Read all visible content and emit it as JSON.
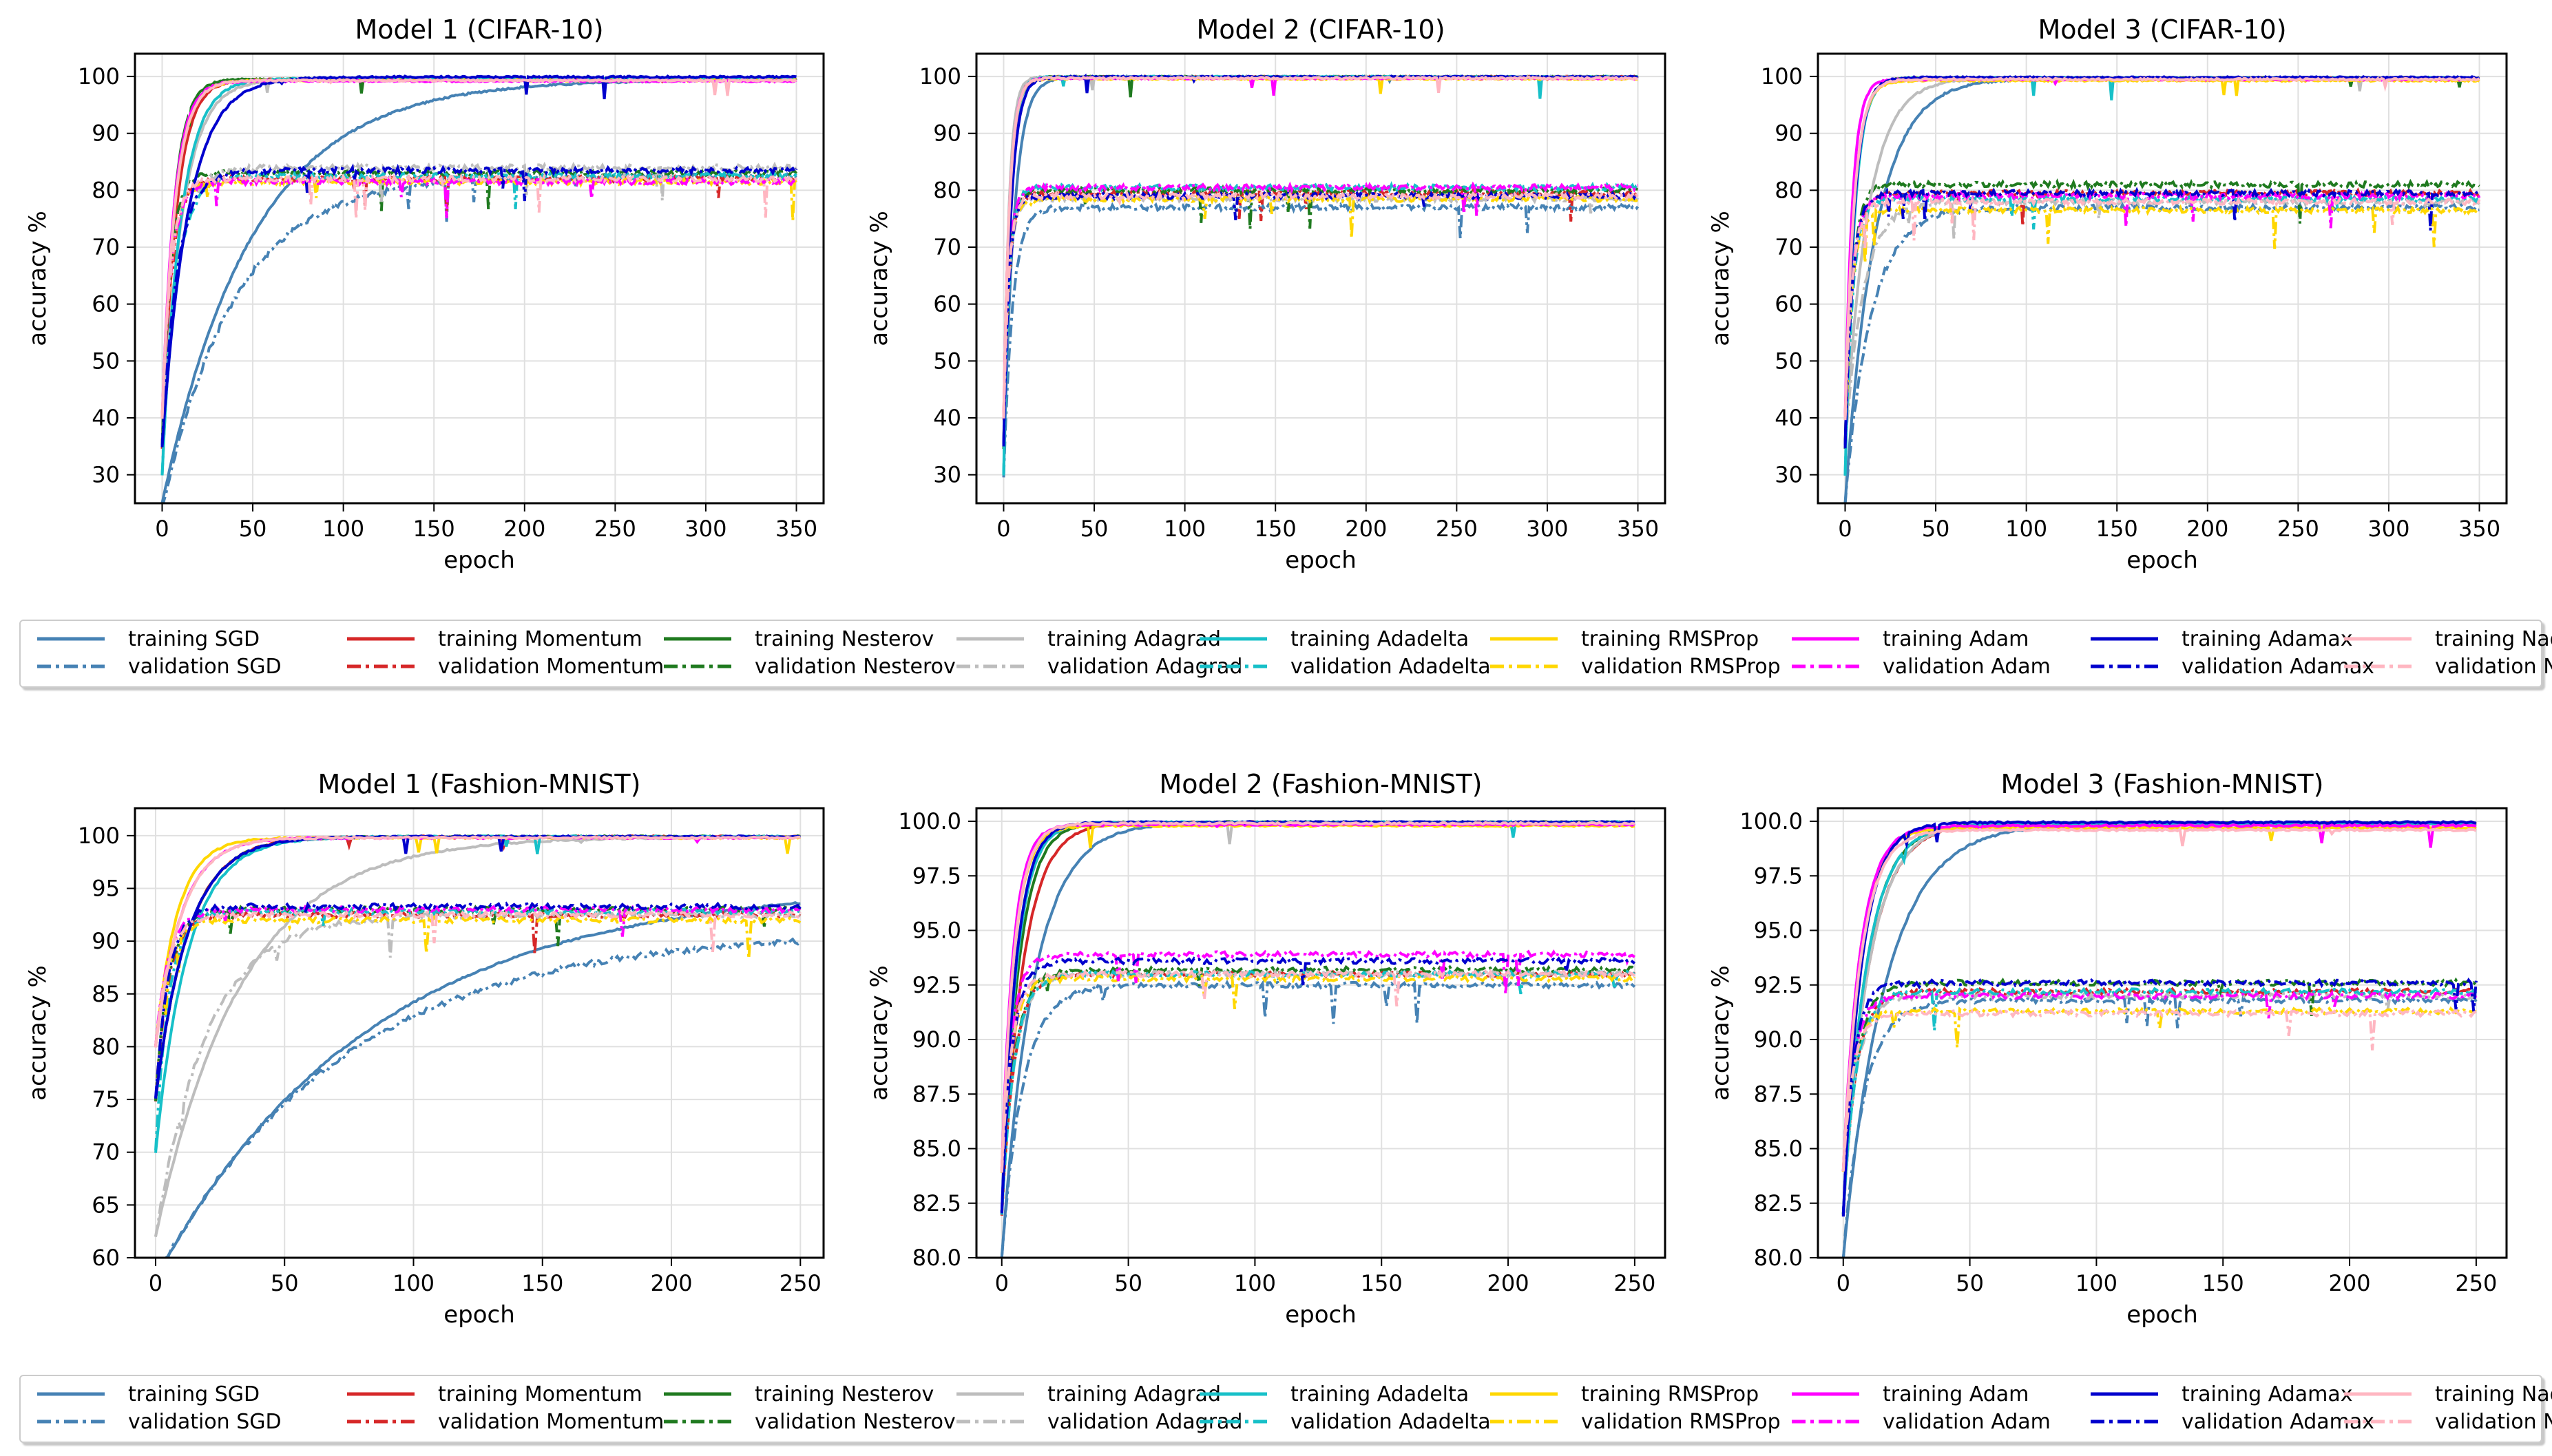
{
  "colors": {
    "SGD": "#4682b4",
    "Momentum": "#d62728",
    "Nesterov": "#1f7a1f",
    "Adagrad": "#bdbdbd",
    "Adadelta": "#17c0c8",
    "RMSProp": "#ffd700",
    "Adam": "#ff00ff",
    "Adamax": "#0000cd",
    "Nadam": "#ffb6c1"
  },
  "legend": {
    "optimizers": [
      "SGD",
      "Momentum",
      "Nesterov",
      "Adagrad",
      "Adadelta",
      "RMSProp",
      "Adam",
      "Adamax",
      "Nadam"
    ],
    "training_labels": [
      "training SGD",
      "training Momentum",
      "training Nesterov",
      "training Adagrad",
      "training Adadelta",
      "training RMSProp",
      "training Adam",
      "training Adamax",
      "training Nadam"
    ],
    "validation_labels": [
      "validation SGD",
      "validation Momentum",
      "validation Nesterov",
      "validation Adagrad",
      "validation Adadelta",
      "validation RMSProp",
      "validation Adam",
      "validation Adamax",
      "validation Nadam"
    ]
  },
  "chart_data": [
    {
      "type": "line",
      "title": "Model 1 (CIFAR-10)",
      "xlabel": "epoch",
      "ylabel": "accuracy %",
      "xlim": [
        -15,
        365
      ],
      "ylim": [
        25,
        104
      ],
      "xticks": [
        0,
        50,
        100,
        150,
        200,
        250,
        300,
        350
      ],
      "yticks": [
        30,
        40,
        50,
        60,
        70,
        80,
        90,
        100
      ],
      "yticklabels": [
        "30",
        "40",
        "50",
        "60",
        "70",
        "80",
        "90",
        "100"
      ],
      "epochs": 350,
      "series": {
        "SGD": {
          "train_start": 25,
          "train_final": 99.5,
          "train_rate": 0.02,
          "val_start": 24,
          "val_final": 82.5,
          "val_rate": 0.025
        },
        "Momentum": {
          "train_start": 35,
          "train_final": 99.5,
          "train_rate": 0.13,
          "val_start": 35,
          "val_final": 82.0,
          "val_rate": 0.2
        },
        "Nesterov": {
          "train_start": 35,
          "train_final": 99.5,
          "train_rate": 0.16,
          "val_start": 35,
          "val_final": 83.0,
          "val_rate": 0.22
        },
        "Adagrad": {
          "train_start": 35,
          "train_final": 99.5,
          "train_rate": 0.09,
          "val_start": 35,
          "val_final": 84.0,
          "val_rate": 0.12
        },
        "Adadelta": {
          "train_start": 30,
          "train_final": 99.6,
          "train_rate": 0.1,
          "val_start": 30,
          "val_final": 82.5,
          "val_rate": 0.13
        },
        "RMSProp": {
          "train_start": 40,
          "train_final": 99.3,
          "train_rate": 0.14,
          "val_start": 40,
          "val_final": 81.5,
          "val_rate": 0.2
        },
        "Adam": {
          "train_start": 40,
          "train_final": 99.2,
          "train_rate": 0.15,
          "val_start": 40,
          "val_final": 81.5,
          "val_rate": 0.2
        },
        "Adamax": {
          "train_start": 35,
          "train_final": 99.9,
          "train_rate": 0.07,
          "val_start": 35,
          "val_final": 83.5,
          "val_rate": 0.12
        },
        "Nadam": {
          "train_start": 40,
          "train_final": 99.3,
          "train_rate": 0.14,
          "val_start": 40,
          "val_final": 82.0,
          "val_rate": 0.2
        }
      }
    },
    {
      "type": "line",
      "title": "Model 2 (CIFAR-10)",
      "xlabel": "epoch",
      "ylabel": "accuracy %",
      "xlim": [
        -15,
        365
      ],
      "ylim": [
        25,
        104
      ],
      "xticks": [
        0,
        50,
        100,
        150,
        200,
        250,
        300,
        350
      ],
      "yticks": [
        30,
        40,
        50,
        60,
        70,
        80,
        90,
        100
      ],
      "yticklabels": [
        "30",
        "40",
        "50",
        "60",
        "70",
        "80",
        "90",
        "100"
      ],
      "epochs": 350,
      "series": {
        "SGD": {
          "train_start": 30,
          "train_final": 99.9,
          "train_rate": 0.18,
          "val_start": 30,
          "val_final": 77.0,
          "val_rate": 0.2
        },
        "Momentum": {
          "train_start": 35,
          "train_final": 99.9,
          "train_rate": 0.3,
          "val_start": 35,
          "val_final": 79.5,
          "val_rate": 0.35
        },
        "Nesterov": {
          "train_start": 35,
          "train_final": 99.9,
          "train_rate": 0.3,
          "val_start": 35,
          "val_final": 80.0,
          "val_rate": 0.35
        },
        "Adagrad": {
          "train_start": 35,
          "train_final": 99.9,
          "train_rate": 0.35,
          "val_start": 35,
          "val_final": 78.5,
          "val_rate": 0.35
        },
        "Adadelta": {
          "train_start": 30,
          "train_final": 99.9,
          "train_rate": 0.3,
          "val_start": 30,
          "val_final": 80.5,
          "val_rate": 0.35
        },
        "RMSProp": {
          "train_start": 40,
          "train_final": 99.6,
          "train_rate": 0.3,
          "val_start": 40,
          "val_final": 78.5,
          "val_rate": 0.35
        },
        "Adam": {
          "train_start": 40,
          "train_final": 99.7,
          "train_rate": 0.3,
          "val_start": 40,
          "val_final": 80.5,
          "val_rate": 0.35
        },
        "Adamax": {
          "train_start": 35,
          "train_final": 99.9,
          "train_rate": 0.25,
          "val_start": 35,
          "val_final": 79.0,
          "val_rate": 0.35
        },
        "Nadam": {
          "train_start": 40,
          "train_final": 99.7,
          "train_rate": 0.3,
          "val_start": 40,
          "val_final": 79.0,
          "val_rate": 0.35
        }
      }
    },
    {
      "type": "line",
      "title": "Model 3 (CIFAR-10)",
      "xlabel": "epoch",
      "ylabel": "accuracy %",
      "xlim": [
        -15,
        365
      ],
      "ylim": [
        25,
        104
      ],
      "xticks": [
        0,
        50,
        100,
        150,
        200,
        250,
        300,
        350
      ],
      "yticks": [
        30,
        40,
        50,
        60,
        70,
        80,
        90,
        100
      ],
      "yticklabels": [
        "30",
        "40",
        "50",
        "60",
        "70",
        "80",
        "90",
        "100"
      ],
      "epochs": 350,
      "series": {
        "SGD": {
          "train_start": 25,
          "train_final": 99.7,
          "train_rate": 0.06,
          "val_start": 25,
          "val_final": 77.0,
          "val_rate": 0.07
        },
        "Momentum": {
          "train_start": 35,
          "train_final": 99.7,
          "train_rate": 0.2,
          "val_start": 35,
          "val_final": 79.5,
          "val_rate": 0.25
        },
        "Nesterov": {
          "train_start": 35,
          "train_final": 99.7,
          "train_rate": 0.2,
          "val_start": 35,
          "val_final": 81.0,
          "val_rate": 0.25
        },
        "Adagrad": {
          "train_start": 35,
          "train_final": 99.7,
          "train_rate": 0.08,
          "val_start": 35,
          "val_final": 78.0,
          "val_rate": 0.1
        },
        "Adadelta": {
          "train_start": 30,
          "train_final": 99.7,
          "train_rate": 0.2,
          "val_start": 30,
          "val_final": 78.5,
          "val_rate": 0.25
        },
        "RMSProp": {
          "train_start": 40,
          "train_final": 99.3,
          "train_rate": 0.2,
          "val_start": 40,
          "val_final": 76.5,
          "val_rate": 0.25
        },
        "Adam": {
          "train_start": 40,
          "train_final": 99.5,
          "train_rate": 0.25,
          "val_start": 40,
          "val_final": 79.0,
          "val_rate": 0.25
        },
        "Adamax": {
          "train_start": 35,
          "train_final": 99.8,
          "train_rate": 0.2,
          "val_start": 35,
          "val_final": 79.5,
          "val_rate": 0.25
        },
        "Nadam": {
          "train_start": 40,
          "train_final": 99.5,
          "train_rate": 0.2,
          "val_start": 40,
          "val_final": 78.0,
          "val_rate": 0.25
        }
      }
    },
    {
      "type": "line",
      "title": "Model 1 (Fashion-MNIST)",
      "xlabel": "epoch",
      "ylabel": "accuracy %",
      "xlim": [
        -8,
        259
      ],
      "ylim": [
        60,
        102.6
      ],
      "xticks": [
        0,
        50,
        100,
        150,
        200,
        250
      ],
      "yticks": [
        60,
        65,
        70,
        75,
        80,
        85,
        90,
        95,
        100
      ],
      "yticklabels": [
        "60",
        "65",
        "70",
        "75",
        "80",
        "85",
        "90",
        "95",
        "100"
      ],
      "epochs": 250,
      "series": {
        "SGD": {
          "train_start": 58,
          "train_final": 95.5,
          "train_rate": 0.012,
          "val_start": 58,
          "val_final": 91.0,
          "val_rate": 0.014
        },
        "Momentum": {
          "train_start": 75,
          "train_final": 99.9,
          "train_rate": 0.08,
          "val_start": 75,
          "val_final": 92.5,
          "val_rate": 0.2
        },
        "Nesterov": {
          "train_start": 75,
          "train_final": 99.9,
          "train_rate": 0.08,
          "val_start": 75,
          "val_final": 93.0,
          "val_rate": 0.2
        },
        "Adagrad": {
          "train_start": 62,
          "train_final": 99.9,
          "train_rate": 0.03,
          "val_start": 62,
          "val_final": 92.5,
          "val_rate": 0.05
        },
        "Adadelta": {
          "train_start": 70,
          "train_final": 99.9,
          "train_rate": 0.08,
          "val_start": 70,
          "val_final": 92.8,
          "val_rate": 0.2
        },
        "RMSProp": {
          "train_start": 80,
          "train_final": 99.8,
          "train_rate": 0.12,
          "val_start": 80,
          "val_final": 92.0,
          "val_rate": 0.2
        },
        "Adam": {
          "train_start": 80,
          "train_final": 99.8,
          "train_rate": 0.1,
          "val_start": 80,
          "val_final": 93.0,
          "val_rate": 0.2
        },
        "Adamax": {
          "train_start": 75,
          "train_final": 99.9,
          "train_rate": 0.08,
          "val_start": 75,
          "val_final": 93.3,
          "val_rate": 0.2
        },
        "Nadam": {
          "train_start": 80,
          "train_final": 99.8,
          "train_rate": 0.1,
          "val_start": 80,
          "val_final": 92.5,
          "val_rate": 0.2
        }
      }
    },
    {
      "type": "line",
      "title": "Model 2 (Fashion-MNIST)",
      "xlabel": "epoch",
      "ylabel": "accuracy %",
      "xlim": [
        -10,
        262
      ],
      "ylim": [
        80,
        100.6
      ],
      "xticks": [
        0,
        50,
        100,
        150,
        200,
        250
      ],
      "yticks": [
        80,
        82.5,
        85,
        87.5,
        90,
        92.5,
        95,
        97.5,
        100
      ],
      "yticklabels": [
        "80.0",
        "82.5",
        "85.0",
        "87.5",
        "90.0",
        "92.5",
        "95.0",
        "97.5",
        "100.0"
      ],
      "epochs": 250,
      "series": {
        "SGD": {
          "train_start": 80,
          "train_final": 99.95,
          "train_rate": 0.08,
          "val_start": 80,
          "val_final": 92.5,
          "val_rate": 0.12
        },
        "Momentum": {
          "train_start": 82,
          "train_final": 99.95,
          "train_rate": 0.12,
          "val_start": 82,
          "val_final": 93.0,
          "val_rate": 0.2
        },
        "Nesterov": {
          "train_start": 82,
          "train_final": 99.95,
          "train_rate": 0.15,
          "val_start": 82,
          "val_final": 93.2,
          "val_rate": 0.2
        },
        "Adagrad": {
          "train_start": 82,
          "train_final": 99.95,
          "train_rate": 0.17,
          "val_start": 82,
          "val_final": 93.0,
          "val_rate": 0.2
        },
        "Adadelta": {
          "train_start": 82,
          "train_final": 99.95,
          "train_rate": 0.17,
          "val_start": 82,
          "val_final": 93.0,
          "val_rate": 0.2
        },
        "RMSProp": {
          "train_start": 84,
          "train_final": 99.8,
          "train_rate": 0.2,
          "val_start": 84,
          "val_final": 92.8,
          "val_rate": 0.25
        },
        "Adam": {
          "train_start": 84,
          "train_final": 99.85,
          "train_rate": 0.22,
          "val_start": 84,
          "val_final": 93.9,
          "val_rate": 0.25
        },
        "Adamax": {
          "train_start": 82,
          "train_final": 99.95,
          "train_rate": 0.18,
          "val_start": 82,
          "val_final": 93.6,
          "val_rate": 0.25
        },
        "Nadam": {
          "train_start": 84,
          "train_final": 99.9,
          "train_rate": 0.2,
          "val_start": 84,
          "val_final": 93.0,
          "val_rate": 0.25
        }
      }
    },
    {
      "type": "line",
      "title": "Model 3 (Fashion-MNIST)",
      "xlabel": "epoch",
      "ylabel": "accuracy %",
      "xlim": [
        -10,
        262
      ],
      "ylim": [
        80,
        100.6
      ],
      "xticks": [
        0,
        50,
        100,
        150,
        200,
        250
      ],
      "yticks": [
        80,
        82.5,
        85,
        87.5,
        90,
        92.5,
        95,
        97.5,
        100
      ],
      "yticklabels": [
        "80.0",
        "82.5",
        "85.0",
        "87.5",
        "90.0",
        "92.5",
        "95.0",
        "97.5",
        "100.0"
      ],
      "epochs": 250,
      "series": {
        "SGD": {
          "train_start": 80,
          "train_final": 99.9,
          "train_rate": 0.06,
          "val_start": 80,
          "val_final": 91.8,
          "val_rate": 0.12
        },
        "Momentum": {
          "train_start": 82,
          "train_final": 99.9,
          "train_rate": 0.1,
          "val_start": 82,
          "val_final": 92.2,
          "val_rate": 0.2
        },
        "Nesterov": {
          "train_start": 82,
          "train_final": 99.9,
          "train_rate": 0.11,
          "val_start": 82,
          "val_final": 92.6,
          "val_rate": 0.2
        },
        "Adagrad": {
          "train_start": 82,
          "train_final": 99.9,
          "train_rate": 0.1,
          "val_start": 82,
          "val_final": 92.0,
          "val_rate": 0.2
        },
        "Adadelta": {
          "train_start": 82,
          "train_final": 99.9,
          "train_rate": 0.11,
          "val_start": 82,
          "val_final": 92.2,
          "val_rate": 0.2
        },
        "RMSProp": {
          "train_start": 84,
          "train_final": 99.7,
          "train_rate": 0.15,
          "val_start": 84,
          "val_final": 91.3,
          "val_rate": 0.25
        },
        "Adam": {
          "train_start": 84,
          "train_final": 99.8,
          "train_rate": 0.15,
          "val_start": 84,
          "val_final": 92.0,
          "val_rate": 0.25
        },
        "Adamax": {
          "train_start": 82,
          "train_final": 99.95,
          "train_rate": 0.14,
          "val_start": 82,
          "val_final": 92.6,
          "val_rate": 0.25
        },
        "Nadam": {
          "train_start": 84,
          "train_final": 99.6,
          "train_rate": 0.14,
          "val_start": 84,
          "val_final": 91.2,
          "val_rate": 0.25
        }
      }
    }
  ]
}
